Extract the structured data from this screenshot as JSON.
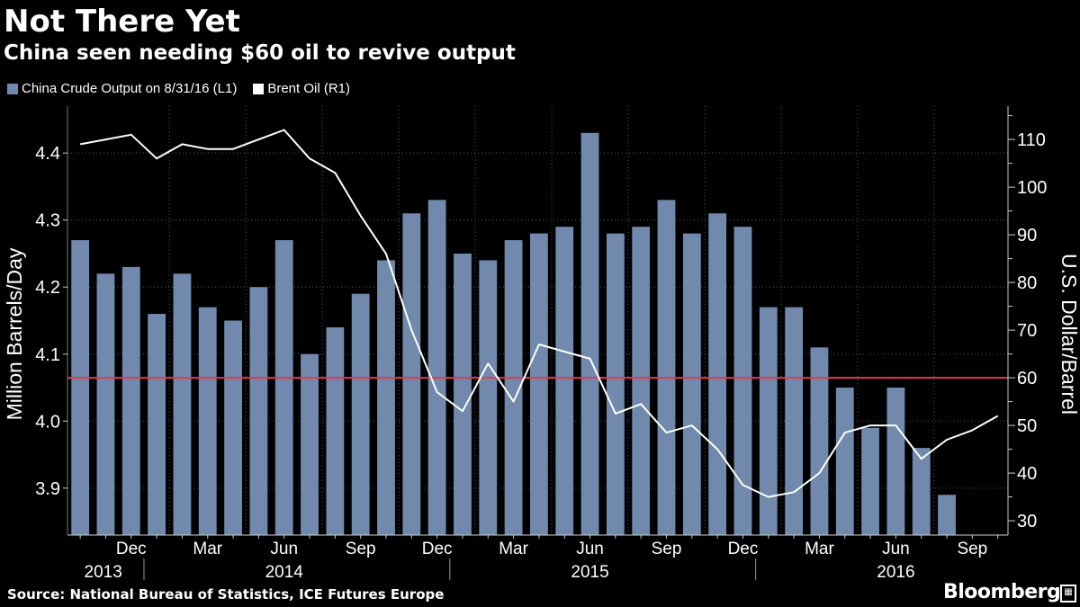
{
  "chart_data": {
    "type": "bar+line",
    "title": "Not There Yet",
    "subtitle": "China seen needing $60 oil to revive output",
    "legend": [
      {
        "label": "China Crude Output on 8/31/16 (L1)",
        "color": "#7089ad"
      },
      {
        "label": "Brent Oil (R1)",
        "color": "#ffffff"
      }
    ],
    "ylabel_left": "Million Barrels/Day",
    "ylabel_right": "U.S. Dollar/Barrel",
    "ylim_left": [
      3.83,
      4.47
    ],
    "ylim_right": [
      27,
      117
    ],
    "left_ticks": [
      "3.9",
      "4.0",
      "4.1",
      "4.2",
      "4.3",
      "4.4"
    ],
    "right_ticks": [
      "30",
      "40",
      "50",
      "60",
      "70",
      "80",
      "90",
      "100",
      "110"
    ],
    "x_month_labels": [
      {
        "label": "Dec",
        "index": 2
      },
      {
        "label": "Mar",
        "index": 5
      },
      {
        "label": "Jun",
        "index": 8
      },
      {
        "label": "Sep",
        "index": 11
      },
      {
        "label": "Dec",
        "index": 14
      },
      {
        "label": "Mar",
        "index": 17
      },
      {
        "label": "Jun",
        "index": 20
      },
      {
        "label": "Sep",
        "index": 23
      },
      {
        "label": "Dec",
        "index": 26
      },
      {
        "label": "Mar",
        "index": 29
      },
      {
        "label": "Jun",
        "index": 32
      },
      {
        "label": "Sep",
        "index": 35
      }
    ],
    "x_year_labels": [
      {
        "label": "2013",
        "index": 0.9
      },
      {
        "label": "2014",
        "index": 8
      },
      {
        "label": "2015",
        "index": 20
      },
      {
        "label": "2016",
        "index": 32
      }
    ],
    "year_dividers": [
      2.5,
      14.5,
      26.5
    ],
    "months_count": 37,
    "series": [
      {
        "name": "China Crude Output on 8/31/16 (L1)",
        "kind": "bar",
        "axis": "left",
        "color": "#7089ad",
        "values": [
          4.27,
          4.22,
          4.23,
          4.16,
          4.22,
          4.17,
          4.15,
          4.2,
          4.27,
          4.1,
          4.14,
          4.19,
          4.24,
          4.31,
          4.33,
          4.25,
          4.24,
          4.27,
          4.28,
          4.29,
          4.43,
          4.28,
          4.29,
          4.33,
          4.28,
          4.31,
          4.29,
          4.17,
          4.17,
          4.11,
          4.05,
          3.99,
          4.05,
          3.96,
          3.89,
          null,
          null
        ]
      },
      {
        "name": "Brent Oil (R1)",
        "kind": "line",
        "axis": "right",
        "color": "#ffffff",
        "values": [
          109,
          110,
          111,
          106,
          109,
          108,
          108,
          110,
          112,
          106,
          103,
          94,
          86,
          70,
          57,
          53,
          63,
          55,
          67,
          65.5,
          64,
          52.5,
          54.5,
          48.5,
          50,
          45,
          37.5,
          35,
          36,
          40,
          48.5,
          50,
          50,
          43,
          47,
          49,
          52
        ]
      }
    ],
    "reference_line": {
      "axis": "right",
      "value": 60,
      "color": "#e23a4c"
    }
  },
  "footer": {
    "source": "Source: National Bureau of Statistics, ICE Futures Europe",
    "brand": "Bloomberg"
  }
}
